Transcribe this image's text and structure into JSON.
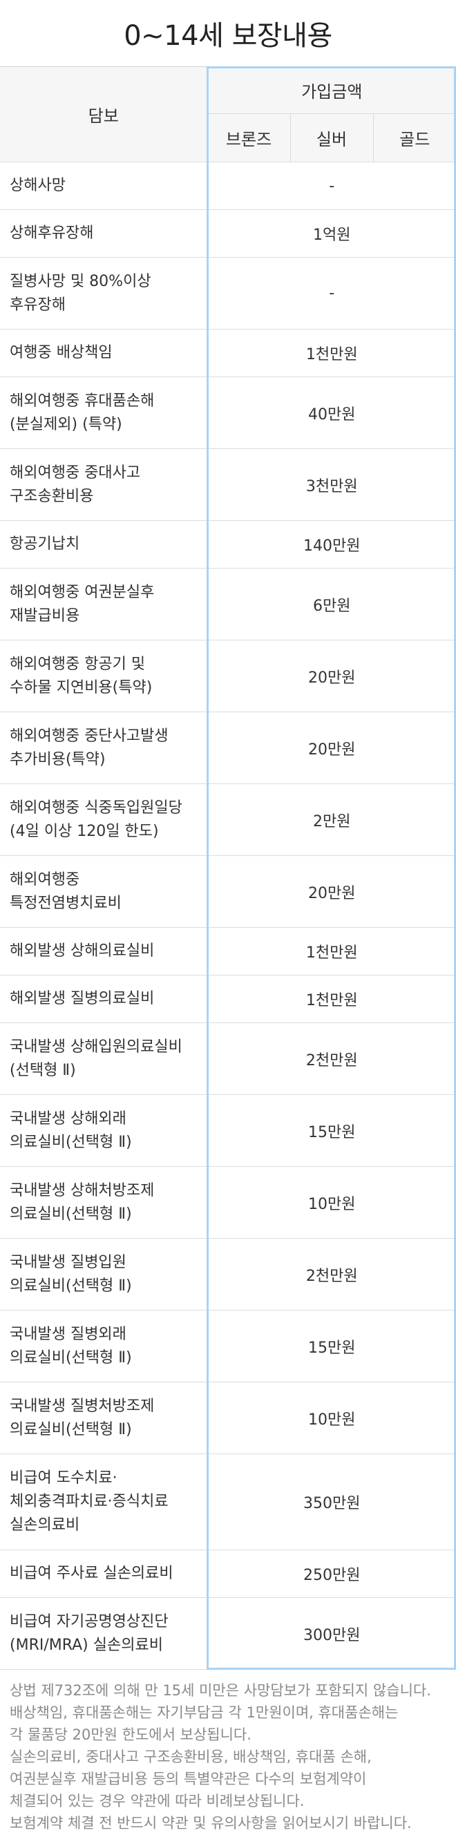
{
  "page": {
    "title": "0~14세 보장내용"
  },
  "table": {
    "header": {
      "coverage": "담보",
      "amount_group": "가입금액",
      "tiers": [
        "브론즈",
        "실버",
        "골드"
      ]
    },
    "rows": [
      {
        "lines": [
          "상해사망"
        ],
        "amount": "-",
        "size": "h69"
      },
      {
        "lines": [
          "상해후유장해"
        ],
        "amount": "1억원",
        "size": "h69"
      },
      {
        "lines": [
          "질병사망 및 80%이상",
          "후유장해"
        ],
        "amount": "-",
        "size": "h104"
      },
      {
        "lines": [
          "여행중 배상책임"
        ],
        "amount": "1천만원",
        "size": "h69"
      },
      {
        "lines": [
          "해외여행중 휴대품손해",
          "(분실제외) (특약)"
        ],
        "amount": "40만원",
        "size": "h104"
      },
      {
        "lines": [
          "해외여행중 중대사고",
          "구조송환비용"
        ],
        "amount": "3천만원",
        "size": "h104"
      },
      {
        "lines": [
          "항공기납치"
        ],
        "amount": "140만원",
        "size": "h69"
      },
      {
        "lines": [
          "해외여행중 여권분실후",
          "재발급비용"
        ],
        "amount": "6만원",
        "size": "h104"
      },
      {
        "lines": [
          "해외여행중 항공기 및",
          "수하물 지연비용(특약)"
        ],
        "amount": "20만원",
        "size": "h104"
      },
      {
        "lines": [
          "해외여행중 중단사고발생",
          "추가비용(특약)"
        ],
        "amount": "20만원",
        "size": "h104"
      },
      {
        "lines": [
          "해외여행중 식중독입원일당",
          "(4일 이상 120일 한도)"
        ],
        "amount": "2만원",
        "size": "h104"
      },
      {
        "lines": [
          "해외여행중",
          "특정전염병치료비"
        ],
        "amount": "20만원",
        "size": "h104"
      },
      {
        "lines": [
          "해외발생 상해의료실비"
        ],
        "amount": "1천만원",
        "size": "h69"
      },
      {
        "lines": [
          "해외발생 질병의료실비"
        ],
        "amount": "1천만원",
        "size": "h69"
      },
      {
        "lines": [
          "국내발생 상해입원의료실비",
          "(선택형 Ⅱ)"
        ],
        "amount": "2천만원",
        "size": "h104"
      },
      {
        "lines": [
          "국내발생 상해외래",
          "의료실비(선택형 Ⅱ)"
        ],
        "amount": "15만원",
        "size": "h104"
      },
      {
        "lines": [
          "국내발생 상해처방조제",
          "의료실비(선택형 Ⅱ)"
        ],
        "amount": "10만원",
        "size": "h104"
      },
      {
        "lines": [
          "국내발생 질병입원",
          "의료실비(선택형 Ⅱ)"
        ],
        "amount": "2천만원",
        "size": "h104"
      },
      {
        "lines": [
          "국내발생 질병외래",
          "의료실비(선택형 Ⅱ)"
        ],
        "amount": "15만원",
        "size": "h104"
      },
      {
        "lines": [
          "국내발생 질병처방조제",
          "의료실비(선택형 Ⅱ)"
        ],
        "amount": "10만원",
        "size": "h104"
      },
      {
        "lines": [
          "비급여 도수치료·",
          "체외충격파치료·증식치료",
          "실손의료비"
        ],
        "amount": "350만원",
        "size": "h139"
      },
      {
        "lines": [
          "비급여 주사료 실손의료비"
        ],
        "amount": "250만원",
        "size": "h69"
      },
      {
        "lines": [
          "비급여 자기공명영상진단",
          "(MRI/MRA) 실손의료비"
        ],
        "amount": "300만원",
        "size": "h104"
      }
    ]
  },
  "notes": [
    {
      "lines": [
        "상법 제732조에 의해 만 15세 미만은 사망담보가 포함되지 않습니다."
      ]
    },
    {
      "lines": [
        "배상책임, 휴대품손해는 자기부담금 각 1만원이며, 휴대품손해는",
        "각 물품당 20만원 한도에서 보상됩니다."
      ]
    },
    {
      "lines": [
        "실손의료비, 중대사고 구조송환비용, 배상책임, 휴대품 손해,",
        "여권분실후 재발급비용 등의 특별약관은 다수의 보험계약이",
        "체결되어 있는 경우 약관에 따라 비례보상됩니다."
      ]
    },
    {
      "lines": [
        "보험계약 체결 전 반드시 약관 및 유의사항을 읽어보시기 바랍니다."
      ]
    }
  ],
  "note_dash": "-"
}
